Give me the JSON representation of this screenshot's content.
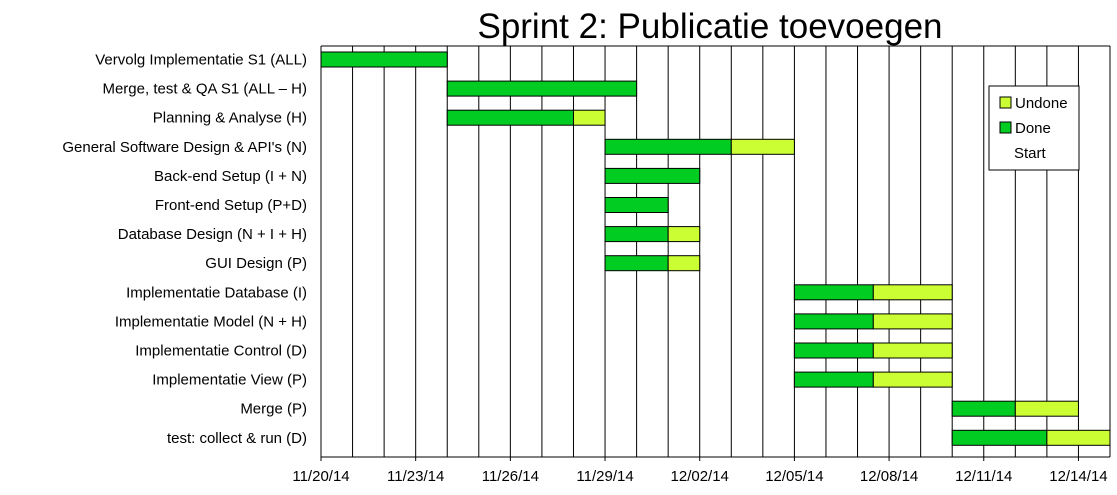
{
  "chart_data": {
    "type": "bar",
    "orientation": "horizontal-gantt",
    "title": "Sprint 2: Publicatie toevoegen",
    "x_tick_labels": [
      "11/20/14",
      "11/23/14",
      "11/26/14",
      "11/29/14",
      "12/02/14",
      "12/05/14",
      "12/08/14",
      "12/11/14",
      "12/14/14"
    ],
    "x_range_days": [
      0,
      25
    ],
    "grid": "vertical-daily",
    "legend_position": "top-right",
    "legend": [
      {
        "key": "undone",
        "label": "Undone",
        "color": "#ccff33"
      },
      {
        "key": "done",
        "label": "Done",
        "color": "#00cc22"
      },
      {
        "key": "start",
        "label": "Start",
        "color": ""
      }
    ],
    "tasks": [
      {
        "label": "Vervolg Implementatie S1 (ALL)",
        "start_day": 0,
        "done_days": 4,
        "undone_days": 0
      },
      {
        "label": "Merge, test & QA  S1 (ALL – H)",
        "start_day": 4,
        "done_days": 6,
        "undone_days": 0
      },
      {
        "label": "Planning & Analyse (H)",
        "start_day": 4,
        "done_days": 4,
        "undone_days": 1
      },
      {
        "label": "General Software Design & API's (N)",
        "start_day": 9,
        "done_days": 4,
        "undone_days": 2
      },
      {
        "label": "Back-end Setup (I + N)",
        "start_day": 9,
        "done_days": 3,
        "undone_days": 0
      },
      {
        "label": "Front-end Setup (P+D)",
        "start_day": 9,
        "done_days": 2,
        "undone_days": 0
      },
      {
        "label": "Database Design (N + I + H)",
        "start_day": 9,
        "done_days": 2,
        "undone_days": 1
      },
      {
        "label": "GUI Design (P)",
        "start_day": 9,
        "done_days": 2,
        "undone_days": 1
      },
      {
        "label": "Implementatie Database (I)",
        "start_day": 15,
        "done_days": 2.5,
        "undone_days": 2.5
      },
      {
        "label": "Implementatie Model (N + H)",
        "start_day": 15,
        "done_days": 2.5,
        "undone_days": 2.5
      },
      {
        "label": "Implementatie Control (D)",
        "start_day": 15,
        "done_days": 2.5,
        "undone_days": 2.5
      },
      {
        "label": "Implementatie View (P)",
        "start_day": 15,
        "done_days": 2.5,
        "undone_days": 2.5
      },
      {
        "label": "Merge (P)",
        "start_day": 20,
        "done_days": 2,
        "undone_days": 2
      },
      {
        "label": "test: collect & run (D)",
        "start_day": 20,
        "done_days": 3,
        "undone_days": 2
      }
    ]
  }
}
